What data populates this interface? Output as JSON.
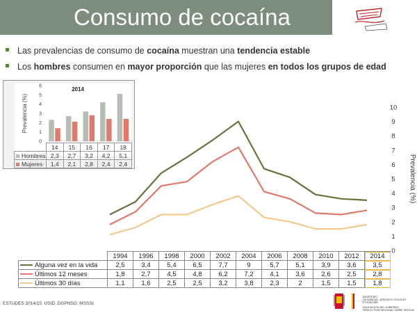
{
  "title": "Consumo de cocaína",
  "bullets": [
    {
      "p1": "Las prevalencias de consumo de ",
      "b1": "cocaína",
      "p2": " muestran una ",
      "b2": "tendencia estable",
      "p3": ""
    },
    {
      "p1": "Los ",
      "b1": "hombres",
      "p2": " consumen en ",
      "b2": "mayor proporción",
      "p3": " que las mujeres ",
      "b3": "en todos los grupos de edad"
    }
  ],
  "inset": {
    "title": "2014",
    "ylabel": "Prevalencia (%)",
    "y_ticks": [
      "0",
      "1",
      "2",
      "3",
      "4",
      "5",
      "6"
    ],
    "rows": [
      {
        "label": "Hombres",
        "values": [
          "2,3",
          "2,7",
          "3,2",
          "4,2",
          "5,1"
        ]
      },
      {
        "label": "Mujeres",
        "values": [
          "1,4",
          "2,1",
          "2,8",
          "2,4",
          "2,4"
        ]
      }
    ]
  },
  "main": {
    "ylabel": "Prevalencia (%)",
    "y_ticks": [
      "0",
      "1",
      "2",
      "3",
      "4",
      "5",
      "6",
      "7",
      "8",
      "9",
      "10"
    ],
    "rows": [
      {
        "label": "Alguna vez en la vida",
        "values": [
          "2,5",
          "3,4",
          "5,4",
          "6,5",
          "7,7",
          "9",
          "5,7",
          "5,1",
          "3,9",
          "3,6",
          "3,5"
        ]
      },
      {
        "label": "Últimos 12 meses",
        "values": [
          "1,8",
          "2,7",
          "4,5",
          "4,8",
          "6,2",
          "7,2",
          "4,1",
          "3,6",
          "2,6",
          "2,5",
          "2,8"
        ]
      },
      {
        "label": "Últimos 30 días",
        "values": [
          "1,1",
          "1,6",
          "2,5",
          "2,5",
          "3,2",
          "3,8",
          "2,3",
          "2",
          "1,5",
          "1,5",
          "1,8"
        ]
      }
    ]
  },
  "chart_data": [
    {
      "type": "bar",
      "title": "2014",
      "xlabel": "",
      "ylabel": "Prevalencia (%)",
      "ylim": [
        0,
        6
      ],
      "categories": [
        "14",
        "15",
        "16",
        "17",
        "18"
      ],
      "series": [
        {
          "name": "Hombres",
          "values": [
            2.3,
            2.7,
            3.2,
            4.2,
            5.1
          ],
          "color": "#b5bdb5"
        },
        {
          "name": "Mujeres",
          "values": [
            1.4,
            2.1,
            2.8,
            2.4,
            2.4
          ],
          "color": "#e07a6c"
        }
      ]
    },
    {
      "type": "line",
      "xlabel": "",
      "ylabel": "Prevalencia (%)",
      "ylim": [
        0,
        10
      ],
      "x": [
        "1994",
        "1996",
        "1998",
        "2000",
        "2002",
        "2004",
        "2006",
        "2008",
        "2010",
        "2012",
        "2014"
      ],
      "series": [
        {
          "name": "Alguna vez en la vida",
          "values": [
            2.5,
            3.4,
            5.4,
            6.5,
            7.7,
            9,
            5.7,
            5.1,
            3.9,
            3.6,
            3.5
          ],
          "color": "#6b6f3a"
        },
        {
          "name": "Últimos 12 meses",
          "values": [
            1.8,
            2.7,
            4.5,
            4.8,
            6.2,
            7.2,
            4.1,
            3.6,
            2.6,
            2.5,
            2.8
          ],
          "color": "#e2776a"
        },
        {
          "name": "Últimos 30 días",
          "values": [
            1.1,
            1.6,
            2.5,
            2.5,
            3.2,
            3.8,
            2.3,
            2,
            1.5,
            1.5,
            1.8
          ],
          "color": "#f2c98a"
        }
      ]
    }
  ],
  "footer": "ESTUDES 2014/15. USID. DGPNSD. MSSSI",
  "ministry": {
    "name_lines": [
      "MINISTERIO",
      "DE SANIDAD, SERVICIOS SOCIALES",
      "E IGUALDAD"
    ],
    "sub_lines": [
      "DELEGACIÓN DEL GOBIERNO",
      "PARA EL PLAN NACIONAL SOBRE DROGAS"
    ]
  }
}
